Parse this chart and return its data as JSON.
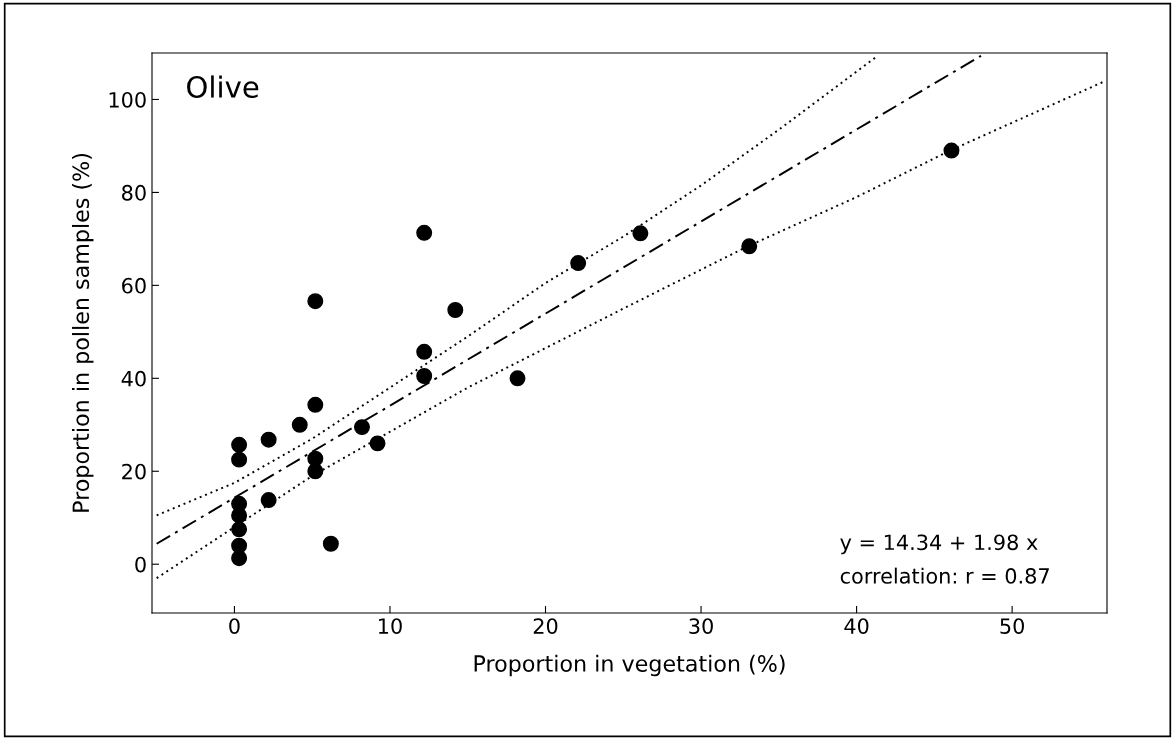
{
  "chart_data": {
    "type": "scatter",
    "title": "Olive",
    "xlabel": "Proportion in vegetation (%)",
    "ylabel": "Proportion in pollen samples (%)",
    "xlim": [
      -5.3,
      56.1
    ],
    "ylim": [
      -10.5,
      110
    ],
    "xticks": [
      0,
      10,
      20,
      30,
      40,
      50
    ],
    "yticks": [
      0,
      20,
      40,
      60,
      80,
      100
    ],
    "grid": false,
    "series": [
      {
        "marker": "circle",
        "color": "#000000",
        "x": [
          0.3,
          0.3,
          0.3,
          0.3,
          0.3,
          0.3,
          0.3,
          2.2,
          2.2,
          4.2,
          5.2,
          5.2,
          5.2,
          5.2,
          6.2,
          8.2,
          9.2,
          12.2,
          12.2,
          12.2,
          14.2,
          18.2,
          22.1,
          26.1,
          33.1,
          46.1
        ],
        "values": [
          25.7,
          22.5,
          13,
          10.5,
          7.5,
          4,
          1.3,
          26.8,
          13.8,
          30,
          56.6,
          34.3,
          22.7,
          20,
          4.4,
          29.5,
          26,
          71.3,
          45.7,
          40.5,
          54.7,
          40,
          64.8,
          71.2,
          68.4,
          89
        ]
      },
      {
        "type": "line",
        "line_style": "dashdot",
        "color": "#000000",
        "x": [
          -5,
          48
        ],
        "values": [
          4.4,
          109.4
        ]
      },
      {
        "type": "line",
        "line_style": "dotted",
        "color": "#000000",
        "x": [
          -5,
          0,
          5,
          10,
          15,
          20,
          25,
          30,
          35,
          41.2
        ],
        "values": [
          10.5,
          17.5,
          27,
          38,
          49,
          60.5,
          70.5,
          81.5,
          93.5,
          109
        ]
      },
      {
        "type": "line",
        "line_style": "dotted",
        "color": "#000000",
        "x": [
          -5,
          0,
          5,
          10,
          15,
          20,
          25,
          33,
          40,
          46,
          56
        ],
        "values": [
          -3,
          8,
          19,
          28.5,
          38,
          46.5,
          55,
          68.4,
          79,
          89,
          104
        ]
      }
    ],
    "annotations": [
      "y = 14.34 + 1.98 x",
      "correlation: r = 0.87"
    ]
  }
}
